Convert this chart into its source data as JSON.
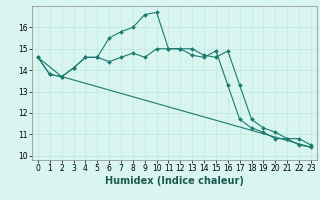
{
  "title": "",
  "xlabel": "Humidex (Indice chaleur)",
  "bg_color": "#d8f5f0",
  "grid_color": "#c0e8e0",
  "line_color": "#1a7a6e",
  "xlim": [
    -0.5,
    23.5
  ],
  "ylim": [
    9.8,
    17.0
  ],
  "yticks": [
    10,
    11,
    12,
    13,
    14,
    15,
    16
  ],
  "xticks": [
    0,
    1,
    2,
    3,
    4,
    5,
    6,
    7,
    8,
    9,
    10,
    11,
    12,
    13,
    14,
    15,
    16,
    17,
    18,
    19,
    20,
    21,
    22,
    23
  ],
  "series1_x": [
    0,
    1,
    2,
    3,
    4,
    5,
    6,
    7,
    8,
    9,
    10,
    11,
    12,
    13,
    14,
    15,
    16,
    17,
    18,
    19,
    20,
    21,
    22,
    23
  ],
  "series1_y": [
    14.6,
    13.8,
    13.7,
    14.1,
    14.6,
    14.6,
    14.4,
    14.6,
    14.8,
    14.6,
    15.0,
    15.0,
    15.0,
    14.7,
    14.6,
    14.9,
    13.3,
    11.7,
    11.3,
    11.1,
    10.8,
    10.8,
    10.5,
    10.4
  ],
  "series2_x": [
    0,
    1,
    2,
    3,
    4,
    5,
    6,
    7,
    8,
    9,
    10,
    11,
    12,
    13,
    14,
    15,
    16,
    17,
    18,
    19,
    20,
    21,
    22,
    23
  ],
  "series2_y": [
    14.6,
    13.8,
    13.7,
    14.1,
    14.6,
    14.6,
    15.5,
    15.8,
    16.0,
    16.6,
    16.7,
    15.0,
    15.0,
    15.0,
    14.7,
    14.6,
    14.9,
    13.3,
    11.7,
    11.3,
    11.1,
    10.8,
    10.8,
    10.5
  ],
  "series3_x": [
    0,
    2,
    23
  ],
  "series3_y": [
    14.6,
    13.7,
    10.4
  ],
  "axis_fontsize": 7,
  "tick_fontsize": 5.5
}
